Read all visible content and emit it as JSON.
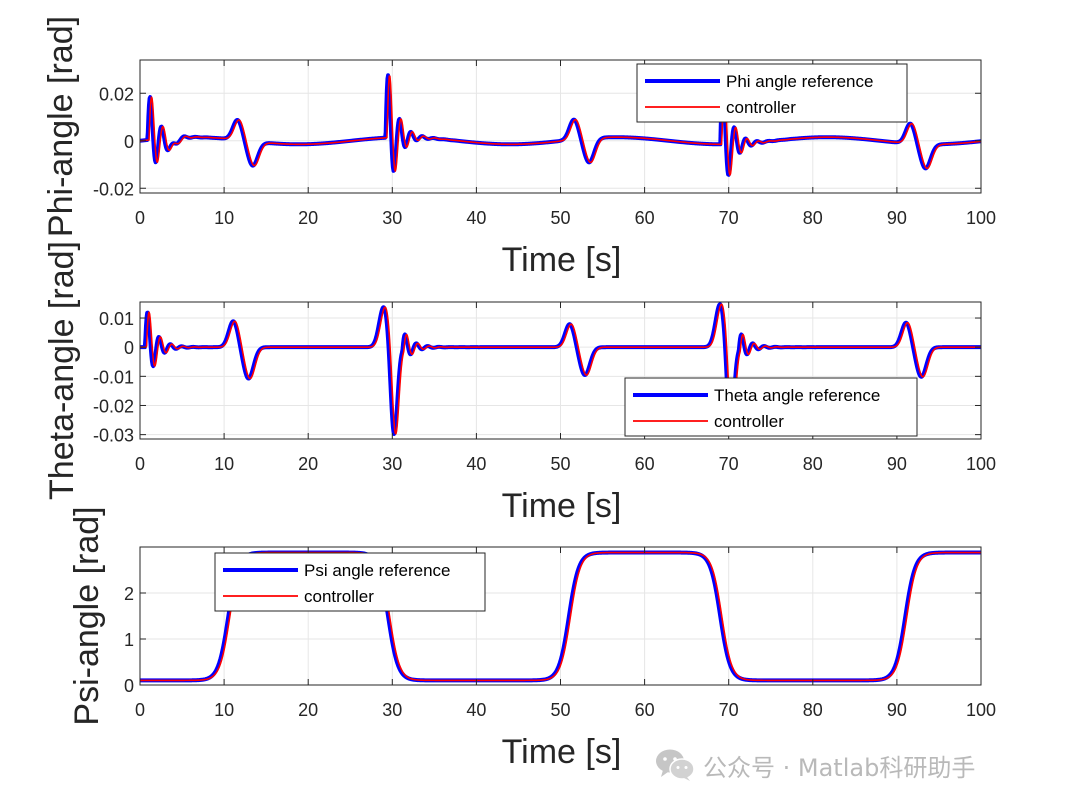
{
  "chart_data": [
    {
      "type": "line",
      "id": "phi",
      "xlabel": "Time [s]",
      "ylabel": "Phi-angle [rad]",
      "xlim": [
        0,
        100
      ],
      "ylim": [
        -0.022,
        0.034
      ],
      "xticks": [
        0,
        10,
        20,
        30,
        40,
        50,
        60,
        70,
        80,
        90,
        100
      ],
      "yticks": [
        0.02,
        0,
        -0.02
      ],
      "ytick_labels": [
        "0.02",
        "0",
        "-0.02"
      ],
      "grid": true,
      "legend_position": "top-right",
      "pattern": "maneuver-transients",
      "series": [
        {
          "name": "Phi angle reference",
          "color": "#0000ff"
        },
        {
          "name": "controller",
          "color": "#ff0000"
        }
      ]
    },
    {
      "type": "line",
      "id": "theta",
      "xlabel": "Time [s]",
      "ylabel": "Theta-angle [rad]",
      "xlim": [
        0,
        100
      ],
      "ylim": [
        -0.0315,
        0.0155
      ],
      "xticks": [
        0,
        10,
        20,
        30,
        40,
        50,
        60,
        70,
        80,
        90,
        100
      ],
      "yticks": [
        0.01,
        0,
        -0.01,
        -0.02,
        -0.03
      ],
      "ytick_labels": [
        "0.01",
        "0",
        "-0.01",
        "-0.02",
        "-0.03"
      ],
      "grid": true,
      "legend_position": "bottom-right",
      "pattern": "maneuver-transients",
      "series": [
        {
          "name": "Theta angle reference",
          "color": "#0000ff"
        },
        {
          "name": "controller",
          "color": "#ff0000"
        }
      ]
    },
    {
      "type": "line",
      "id": "psi",
      "xlabel": "Time [s]",
      "ylabel": "Psi-angle [rad]",
      "xlim": [
        0,
        100
      ],
      "ylim": [
        0,
        3
      ],
      "xticks": [
        0,
        10,
        20,
        30,
        40,
        50,
        60,
        70,
        80,
        90,
        100
      ],
      "yticks": [
        2,
        1,
        0
      ],
      "ytick_labels": [
        "2",
        "1",
        "0"
      ],
      "grid": true,
      "legend_position": "top-left",
      "pattern": "sigmoid-steps",
      "low": 0.1,
      "high": 2.88,
      "transitions": [
        10.5,
        29.5,
        51,
        69,
        91
      ],
      "series": [
        {
          "name": "Psi angle reference",
          "color": "#0000ff"
        },
        {
          "name": "controller",
          "color": "#ff0000"
        }
      ]
    }
  ],
  "watermark": {
    "text": "公众号 · Matlab科研助手",
    "icon": "wechat-icon",
    "color": "#b9b9b9"
  }
}
